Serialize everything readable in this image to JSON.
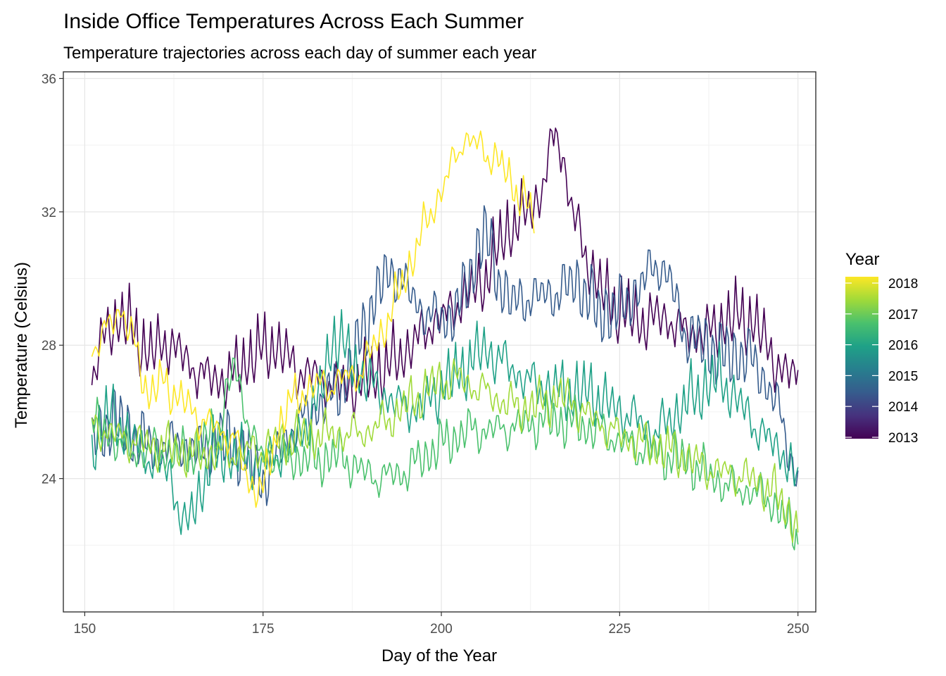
{
  "chart_data": {
    "type": "line",
    "title": "Inside Office Temperatures Across Each Summer",
    "subtitle": "Temperature trajectories across each day of summer each year",
    "xlabel": "Day of the Year",
    "ylabel": "Temperature (Celsius)",
    "xlim": [
      147,
      252.5
    ],
    "ylim": [
      20.0,
      36.2
    ],
    "x_ticks": [
      "150",
      "175",
      "200",
      "225",
      "250"
    ],
    "y_ticks": [
      "24",
      "28",
      "32",
      "36"
    ],
    "grid": true,
    "legend": {
      "title": "Year",
      "position": "right",
      "colorbar_labels": [
        "2018",
        "2017",
        "2016",
        "2015",
        "2014",
        "2013"
      ],
      "colors": [
        "#FDE725",
        "#A0DA39",
        "#4AC16D",
        "#1FA187",
        "#277F8E",
        "#365C8D",
        "#46327E",
        "#440154"
      ]
    },
    "series": [
      {
        "year": 2013,
        "color": "#440154",
        "x": [
          151,
          153,
          155,
          157,
          159,
          162,
          165,
          168,
          170,
          172,
          174,
          177,
          180,
          182,
          185,
          188,
          191,
          194,
          197,
          199,
          201,
          203,
          206,
          208,
          210,
          212,
          214,
          216,
          217,
          218,
          220,
          222,
          224,
          226,
          228,
          231,
          234,
          237,
          240,
          242,
          244,
          246,
          248,
          250
        ],
        "y": [
          27.0,
          28.4,
          28.7,
          28.2,
          27.6,
          28.1,
          27.4,
          27.0,
          26.9,
          27.3,
          27.6,
          27.9,
          27.2,
          27.2,
          26.8,
          26.7,
          27.0,
          27.5,
          28.3,
          28.8,
          29.0,
          29.4,
          29.8,
          30.8,
          31.5,
          31.9,
          32.6,
          34.5,
          33.8,
          32.4,
          30.8,
          29.7,
          29.0,
          28.8,
          28.6,
          28.9,
          28.5,
          28.3,
          28.6,
          28.7,
          28.5,
          27.8,
          27.1,
          27.3
        ]
      },
      {
        "year": 2014,
        "color": "#365C8D",
        "x": [
          151,
          154,
          157,
          160,
          163,
          166,
          169,
          172,
          175,
          178,
          181,
          184,
          187,
          190,
          192,
          194,
          196,
          198,
          201,
          203,
          206,
          208,
          210,
          213,
          216,
          219,
          222,
          225,
          228,
          230,
          232,
          234,
          237,
          240,
          243,
          245,
          247,
          250
        ],
        "y": [
          25.0,
          25.5,
          25.1,
          24.9,
          25.2,
          24.8,
          25.0,
          24.6,
          23.8,
          25.2,
          26.0,
          26.3,
          26.9,
          28.8,
          29.9,
          30.2,
          29.5,
          29.0,
          28.7,
          29.2,
          31.2,
          29.8,
          29.2,
          29.6,
          29.6,
          29.8,
          28.7,
          28.9,
          29.8,
          30.6,
          30.1,
          28.4,
          27.8,
          27.4,
          27.6,
          27.1,
          26.4,
          23.9
        ]
      },
      {
        "year": 2015,
        "color": "#1FA187",
        "x": [
          151,
          153,
          156,
          159,
          162,
          164,
          166,
          168,
          171,
          174,
          177,
          180,
          183,
          185,
          188,
          191,
          194,
          197,
          200,
          203,
          206,
          209,
          212,
          215,
          218,
          221,
          224,
          227,
          230,
          233,
          236,
          239,
          242,
          245,
          248,
          250
        ],
        "y": [
          24.6,
          25.8,
          25.3,
          24.7,
          24.2,
          22.4,
          23.4,
          24.5,
          24.6,
          24.4,
          24.8,
          25.2,
          26.4,
          28.2,
          27.2,
          26.7,
          26.3,
          26.1,
          26.6,
          27.1,
          27.8,
          27.5,
          27.0,
          26.7,
          26.4,
          26.4,
          26.1,
          25.9,
          25.4,
          25.9,
          26.4,
          26.9,
          26.2,
          25.4,
          24.8,
          23.6
        ]
      },
      {
        "year": 2016,
        "color": "#4AC16D",
        "x": [
          151,
          154,
          157,
          160,
          163,
          166,
          169,
          171,
          174,
          177,
          180,
          183,
          186,
          189,
          192,
          195,
          198,
          201,
          204,
          207,
          210,
          213,
          216,
          219,
          222,
          225,
          228,
          231,
          234,
          237,
          240,
          243,
          246,
          248,
          250
        ],
        "y": [
          25.6,
          25.2,
          24.8,
          24.9,
          24.6,
          24.7,
          25.6,
          27.4,
          24.9,
          24.6,
          24.5,
          24.4,
          24.6,
          24.2,
          24.1,
          24.2,
          24.6,
          25.0,
          25.4,
          25.5,
          25.6,
          25.6,
          25.6,
          25.5,
          25.4,
          25.2,
          24.9,
          24.6,
          24.4,
          24.1,
          23.8,
          23.7,
          23.4,
          22.7,
          22.1
        ]
      },
      {
        "year": 2017,
        "color": "#A0DA39",
        "x": [
          151,
          155,
          160,
          165,
          170,
          175,
          180,
          185,
          190,
          193,
          196,
          199,
          202,
          205,
          208,
          211,
          214,
          217,
          220,
          223,
          226,
          229,
          232,
          235,
          238,
          241,
          244,
          247,
          250
        ],
        "y": [
          25.6,
          25.3,
          24.9,
          24.6,
          24.8,
          24.9,
          25.1,
          25.3,
          25.5,
          25.8,
          26.2,
          26.7,
          27.0,
          26.8,
          26.4,
          26.0,
          26.1,
          26.4,
          26.0,
          25.6,
          25.2,
          24.9,
          24.7,
          24.5,
          24.3,
          24.2,
          23.9,
          23.4,
          22.4
        ]
      },
      {
        "year": 2018,
        "color": "#FDE725",
        "x": [
          151,
          153,
          155,
          157,
          159,
          161,
          163,
          165,
          167,
          169,
          171,
          173,
          175,
          177,
          179,
          181,
          183,
          185,
          187,
          189,
          191,
          193,
          195,
          197,
          199,
          201,
          203,
          205,
          207,
          209,
          211,
          213
        ],
        "y": [
          28.0,
          28.4,
          29.2,
          27.9,
          26.4,
          26.8,
          26.4,
          26.0,
          25.7,
          25.5,
          25.2,
          23.9,
          23.5,
          25.4,
          26.2,
          26.6,
          26.8,
          26.9,
          27.1,
          27.3,
          28.1,
          28.9,
          30.0,
          31.1,
          32.2,
          33.1,
          34.3,
          34.0,
          33.7,
          33.1,
          32.4,
          31.7
        ]
      }
    ]
  }
}
